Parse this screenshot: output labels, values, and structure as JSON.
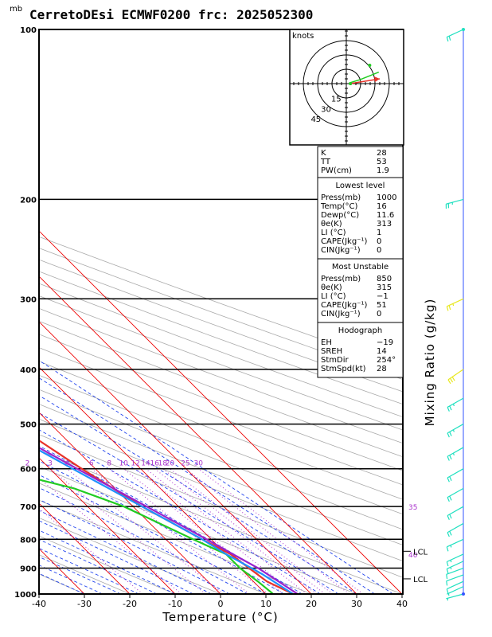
{
  "page": {
    "title": "CerretoDEsi ECMWF0200  frc: 2025052300",
    "unit_corner": "mb"
  },
  "chart_data": {
    "type": "line",
    "title": "CerretoDEsi ECMWF0200  frc: 2025052300",
    "xlabel": "Temperature (°C)",
    "ylabel": "Mixing Ratio (g/kg)",
    "xlim": [
      -40,
      40
    ],
    "pressure_range": [
      1000,
      100
    ],
    "x_ticks": [
      -40,
      -30,
      -20,
      -10,
      0,
      10,
      20,
      30,
      40
    ],
    "pressure_ticks": [
      100,
      200,
      300,
      400,
      500,
      600,
      700,
      800,
      900,
      1000
    ],
    "mixing_ratio_labels": [
      "1",
      "2",
      "3",
      "4",
      "6",
      "8",
      "10",
      "12",
      "14",
      "16",
      "18",
      "20",
      "25",
      "30"
    ],
    "theta_e_labels": [
      "35",
      "40"
    ],
    "series": [
      {
        "name": "Temperature",
        "color": "#e8332a",
        "points": [
          [
            1000,
            16
          ],
          [
            950,
            13
          ],
          [
            900,
            12
          ],
          [
            850,
            11
          ],
          [
            800,
            8
          ],
          [
            700,
            2
          ],
          [
            600,
            -3
          ],
          [
            500,
            -8
          ],
          [
            400,
            -17
          ],
          [
            300,
            -33
          ],
          [
            250,
            -40
          ],
          [
            200,
            -42
          ],
          [
            150,
            -49
          ],
          [
            100,
            -54
          ]
        ]
      },
      {
        "name": "Dewpoint",
        "color": "#22cc22",
        "points": [
          [
            1000,
            11.6
          ],
          [
            950,
            11
          ],
          [
            900,
            10
          ],
          [
            850,
            10
          ],
          [
            800,
            6
          ],
          [
            700,
            -2
          ],
          [
            650,
            -9
          ],
          [
            600,
            -22
          ],
          [
            500,
            -31
          ],
          [
            400,
            -52
          ],
          [
            300,
            -67
          ],
          [
            250,
            -77
          ],
          [
            200,
            -85
          ],
          [
            150,
            -90
          ],
          [
            100,
            -99
          ]
        ]
      },
      {
        "name": "Parcel (lowest level)",
        "color": "#1e90ff",
        "points": [
          [
            1000,
            16
          ],
          [
            920,
            13.5
          ],
          [
            850,
            10
          ],
          [
            800,
            8
          ],
          [
            700,
            2
          ],
          [
            600,
            -5
          ],
          [
            500,
            -13
          ],
          [
            400,
            -23
          ],
          [
            300,
            -38
          ],
          [
            200,
            -58
          ],
          [
            150,
            -70
          ],
          [
            120,
            -80
          ]
        ]
      },
      {
        "name": "Parcel (most unstable)",
        "color": "#9922cc",
        "points": [
          [
            1000,
            17
          ],
          [
            900,
            14
          ],
          [
            850,
            11.5
          ],
          [
            800,
            9
          ],
          [
            700,
            3
          ],
          [
            600,
            -4
          ],
          [
            500,
            -12
          ],
          [
            400,
            -22
          ],
          [
            300,
            -36
          ],
          [
            200,
            -55
          ],
          [
            150,
            -67
          ],
          [
            120,
            -76
          ]
        ]
      }
    ],
    "levels": [
      {
        "label": "LCL",
        "pressure": 940
      },
      {
        "label": "LCL",
        "pressure": 840
      }
    ],
    "wind_barbs": [
      {
        "pressure": 1000,
        "dir": 260,
        "speed_kt": 5
      },
      {
        "pressure": 970,
        "dir": 250,
        "speed_kt": 5
      },
      {
        "pressure": 950,
        "dir": 250,
        "speed_kt": 10
      },
      {
        "pressure": 925,
        "dir": 255,
        "speed_kt": 10
      },
      {
        "pressure": 900,
        "dir": 255,
        "speed_kt": 10
      },
      {
        "pressure": 875,
        "dir": 250,
        "speed_kt": 15
      },
      {
        "pressure": 850,
        "dir": 250,
        "speed_kt": 15
      },
      {
        "pressure": 800,
        "dir": 250,
        "speed_kt": 15
      },
      {
        "pressure": 750,
        "dir": 245,
        "speed_kt": 20
      },
      {
        "pressure": 700,
        "dir": 245,
        "speed_kt": 20
      },
      {
        "pressure": 650,
        "dir": 245,
        "speed_kt": 20
      },
      {
        "pressure": 600,
        "dir": 245,
        "speed_kt": 20
      },
      {
        "pressure": 550,
        "dir": 245,
        "speed_kt": 25
      },
      {
        "pressure": 500,
        "dir": 245,
        "speed_kt": 25
      },
      {
        "pressure": 450,
        "dir": 245,
        "speed_kt": 25
      },
      {
        "pressure": 400,
        "dir": 240,
        "speed_kt": 30
      },
      {
        "pressure": 300,
        "dir": 250,
        "speed_kt": 25
      },
      {
        "pressure": 200,
        "dir": 260,
        "speed_kt": 25
      },
      {
        "pressure": 100,
        "dir": 250,
        "speed_kt": 20
      }
    ],
    "hodograph": {
      "unit": "knots",
      "ring_labels": [
        "15",
        "30",
        "45"
      ],
      "ring_values": [
        15,
        30,
        45
      ],
      "storm_motion": {
        "dir": 254,
        "speed_kt": 28
      },
      "trace": [
        [
          4,
          1
        ],
        [
          14,
          4
        ],
        [
          24,
          8
        ],
        [
          34,
          12
        ]
      ]
    }
  },
  "indices": {
    "top": [
      {
        "label": "K",
        "value": "28"
      },
      {
        "label": "TT",
        "value": "53"
      },
      {
        "label": "PW(cm)",
        "value": "1.9"
      }
    ],
    "lowest_level": {
      "header": "Lowest level",
      "rows": [
        {
          "label": "Press(mb)",
          "value": "1000"
        },
        {
          "label": "Temp(°C)",
          "value": "16"
        },
        {
          "label": "Dewp(°C)",
          "value": "11.6"
        },
        {
          "label": "θe(K)",
          "value": "313"
        },
        {
          "label": "LI  (°C)",
          "value": "1"
        },
        {
          "label": "CAPE(Jkg⁻¹)",
          "value": "0"
        },
        {
          "label": "CIN(Jkg⁻¹)",
          "value": "0"
        }
      ]
    },
    "most_unstable": {
      "header": "Most Unstable",
      "rows": [
        {
          "label": "Press(mb)",
          "value": "850"
        },
        {
          "label": "θe(K)",
          "value": "315"
        },
        {
          "label": "LI  (°C)",
          "value": "−1"
        },
        {
          "label": "CAPE(Jkg⁻¹)",
          "value": "51"
        },
        {
          "label": "CIN(Jkg⁻¹)",
          "value": "0"
        }
      ]
    },
    "hodograph": {
      "header": "Hodograph",
      "rows": [
        {
          "label": "EH",
          "value": "−19"
        },
        {
          "label": "SREH",
          "value": "14"
        },
        {
          "label": "StmDir",
          "value": "254°"
        },
        {
          "label": "StmSpd(kt)",
          "value": "28"
        }
      ]
    }
  },
  "colors": {
    "isotherm": "#ee0000",
    "dry_adiabat": "#aaaaaa",
    "moist_adiabat": "#2244ee",
    "mixing_ratio": "#aa33cc",
    "frame": "#000000",
    "barb": "#20e0c0",
    "barb_yellow": "#e8e820"
  }
}
